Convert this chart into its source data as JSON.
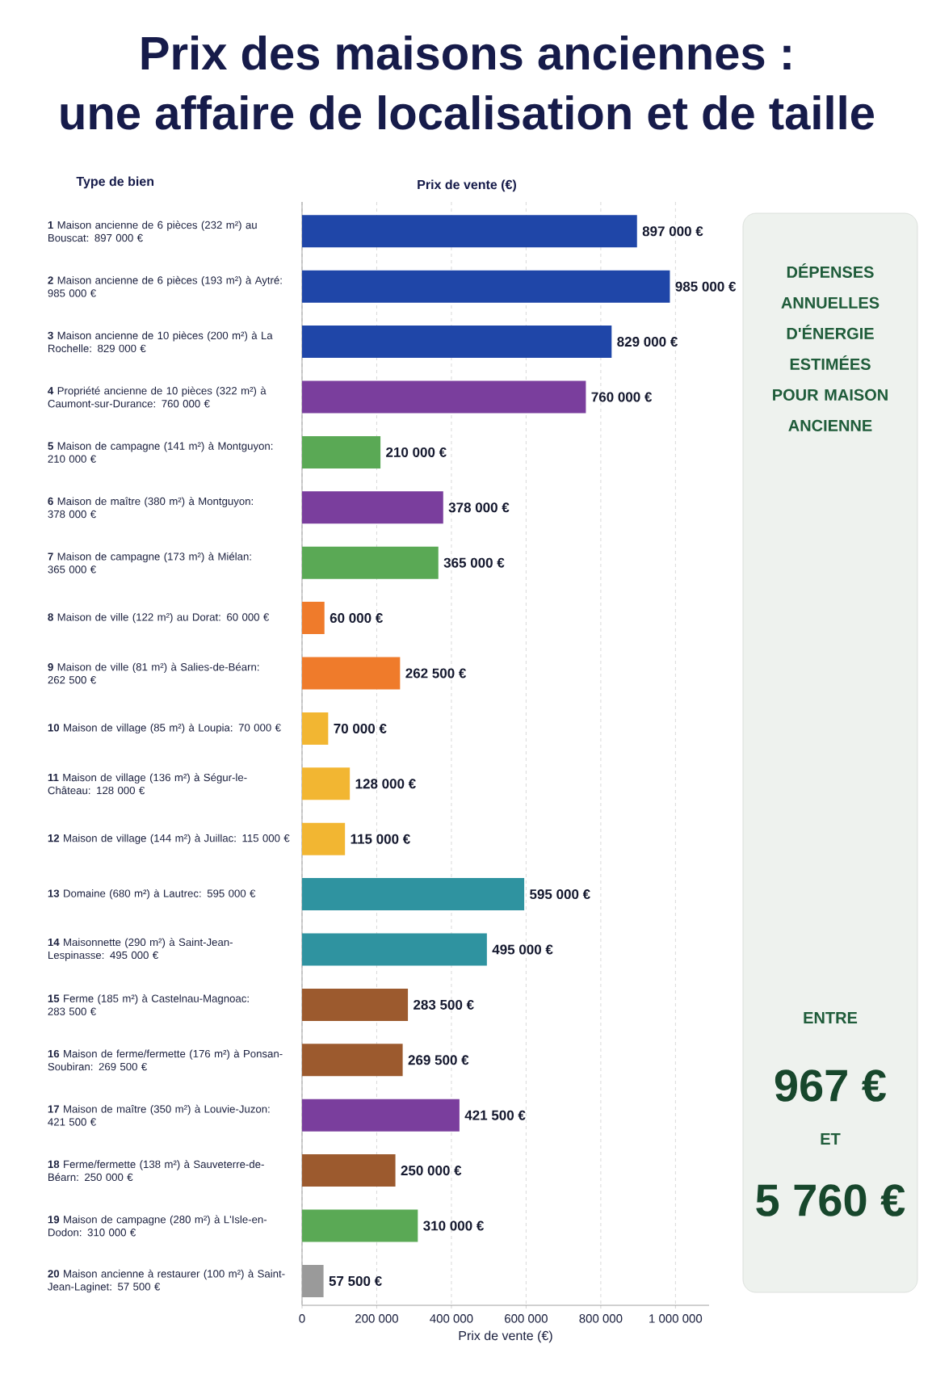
{
  "chart_data": [
    {
      "type": "bar",
      "orientation": "horizontal",
      "title": "Prix des maisons anciennes :",
      "subtitle": "une affaire de localisation et de taille",
      "ylabel": "Type de bien",
      "xlabel": "Prix de vente (€)",
      "annotations": [
        "Prix de vente (€)"
      ],
      "categories": [
        "**1** Maison ancienne de 6 pièces (232 m²) au Bouscat: 897 000 €",
        "**2** Maison ancienne de 6 pièces (193 m²) à Aytré: 985 000 €",
        "**3** Maison ancienne de 10 pièces (200 m²) à La Rochelle: 829 000 €",
        "**4** Propriété ancienne de 10 pièces (322 m²) à Caumont-sur-Durance: 760 000 €",
        "**5** Maison de campagne (141 m²) à Montguyon: 210 000 €",
        "**6** Maison de maître (380 m²) à Montguyon: 378 000 €",
        "**7** Maison de campagne (173 m²) à Miélan: 365 000 €",
        "**8** Maison de ville (122 m²) au Dorat: 60 000 €",
        "**9** Maison de ville (81 m²) à Salies-de-Béarn: 262 500 €",
        "**10** Maison de village (85 m²) à Loupia: 70 000 €",
        "**11** Maison de village (136 m²) à Ségur-le-Château: 128 000 €",
        "**12** Maison de village (144 m²) à Juillac: 115 000 €",
        "**13** Domaine (680 m²) à Lautrec: 595 000 €",
        "**14** Maisonnette (290 m²) à Saint-Jean-Lespinasse: 495 000 €",
        "**15** Ferme (185 m²) à Castelnau-Magnoac: 283 500 €",
        "**16** Maison de ferme/fermette (176 m²) à Ponsan-Soubiran: 269 500 €",
        "**17** Maison de maître (350 m²) à Louvie-Juzon: 421 500 €",
        "**18** Ferme/fermette (138 m²) à Sauveterre-de-Béarn: 250 000 €",
        "**19** Maison de campagne (280 m²) à L'Isle-en-Dodon: 310 000 €",
        "**20** Maison ancienne à restaurer (100 m²) à Saint-Jean-Laginet: 57 500 €"
      ],
      "values": [
        897000,
        985000,
        829000,
        760000,
        210000,
        378000,
        365000,
        60000,
        262500,
        70000,
        128000,
        115000,
        595000,
        495000,
        283500,
        269500,
        421500,
        250000,
        310000,
        57500
      ],
      "colors": [
        "#1f46a8",
        "#1f46a8",
        "#1f46a8",
        "#7a3e9d",
        "#5aa955",
        "#7a3e9d",
        "#5aa955",
        "#ef7b2b",
        "#ef7b2b",
        "#f2b632",
        "#f2b632",
        "#f2b632",
        "#2f93a0",
        "#2f93a0",
        "#9c5a2e",
        "#9c5a2e",
        "#7a3e9d",
        "#9c5a2e",
        "#5aa955",
        "#9a9a9a"
      ],
      "value_labels": [
        "897 000 €",
        "985 000 €",
        "829 000 €",
        "760 000 €",
        "210 000 €",
        "378 000 €",
        "365 000 €",
        "60 000 €",
        "262 500 €",
        "70 000 €",
        "128 000 €",
        "115 000 €",
        "595 000 €",
        "495 000 €",
        "283 500 €",
        "269 500 €",
        "421 500 €",
        "250 000 €",
        "310 000 €",
        "57 500 €"
      ],
      "xlim": [
        0,
        1090000
      ],
      "xticks": [
        0,
        {
          "value": 200000,
          "label": "200 000"
        },
        {
          "value": 400000,
          "label": "400 000"
        },
        {
          "value": 600000,
          "label": "600 000"
        },
        {
          "value": 800000,
          "label": "800 000"
        },
        {
          "value": 1000000,
          "label": "1 000 000"
        }
      ],
      "grid": "x"
    },
    {
      "type": "other",
      "title": "DÉPENSES ANNUELLES D'ÉNERGIE ESTIMÉES POUR MAISON ANCIENNE",
      "annotations": [
        "ENTRE",
        "967 €",
        "ET",
        "5 760 €"
      ]
    }
  ]
}
